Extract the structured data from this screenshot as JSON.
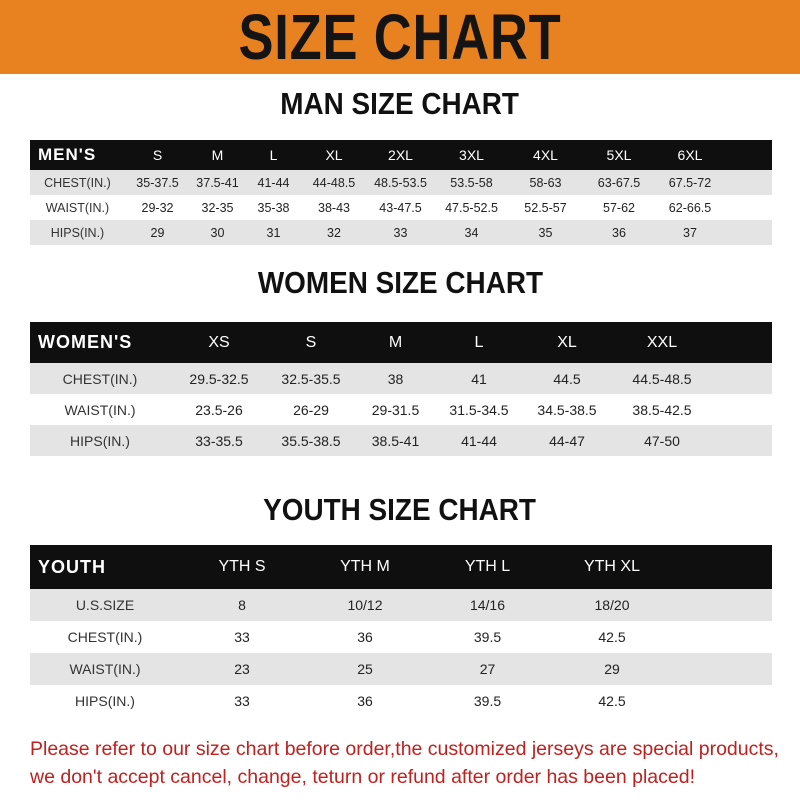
{
  "banner": {
    "title": "SIZE CHART",
    "color": "#e8811f"
  },
  "men": {
    "title": "MAN SIZE CHART",
    "corner": "MEN'S",
    "sizes": [
      "S",
      "M",
      "L",
      "XL",
      "2XL",
      "3XL",
      "4XL",
      "5XL",
      "6XL"
    ],
    "rows": [
      {
        "label": "CHEST(IN.)",
        "values": [
          "35-37.5",
          "37.5-41",
          "41-44",
          "44-48.5",
          "48.5-53.5",
          "53.5-58",
          "58-63",
          "63-67.5",
          "67.5-72"
        ]
      },
      {
        "label": "WAIST(IN.)",
        "values": [
          "29-32",
          "32-35",
          "35-38",
          "38-43",
          "43-47.5",
          "47.5-52.5",
          "52.5-57",
          "57-62",
          "62-66.5"
        ]
      },
      {
        "label": "HIPS(IN.)",
        "values": [
          "29",
          "30",
          "31",
          "32",
          "33",
          "34",
          "35",
          "36",
          "37"
        ]
      }
    ]
  },
  "women": {
    "title": "WOMEN SIZE CHART",
    "corner": "WOMEN'S",
    "sizes": [
      "XS",
      "S",
      "M",
      "L",
      "XL",
      "XXL"
    ],
    "rows": [
      {
        "label": "CHEST(IN.)",
        "values": [
          "29.5-32.5",
          "32.5-35.5",
          "38",
          "41",
          "44.5",
          "44.5-48.5"
        ]
      },
      {
        "label": "WAIST(IN.)",
        "values": [
          "23.5-26",
          "26-29",
          "29-31.5",
          "31.5-34.5",
          "34.5-38.5",
          "38.5-42.5"
        ]
      },
      {
        "label": "HIPS(IN.)",
        "values": [
          "33-35.5",
          "35.5-38.5",
          "38.5-41",
          "41-44",
          "44-47",
          "47-50"
        ]
      }
    ]
  },
  "youth": {
    "title": "YOUTH SIZE CHART",
    "corner": "YOUTH",
    "sizes": [
      "YTH S",
      "YTH M",
      "YTH L",
      "YTH XL"
    ],
    "rows": [
      {
        "label": "U.S.SIZE",
        "values": [
          "8",
          "10/12",
          "14/16",
          "18/20"
        ]
      },
      {
        "label": "CHEST(IN.)",
        "values": [
          "33",
          "36",
          "39.5",
          "42.5"
        ]
      },
      {
        "label": "WAIST(IN.)",
        "values": [
          "23",
          "25",
          "27",
          "29"
        ]
      },
      {
        "label": "HIPS(IN.)",
        "values": [
          "33",
          "36",
          "39.5",
          "42.5"
        ]
      }
    ]
  },
  "note": {
    "line1": "Please refer to our size chart before order,the customized jerseys are special products,",
    "line2": "we don't accept cancel, change, teturn or refund after order has been placed!",
    "color": "#c0201e"
  }
}
